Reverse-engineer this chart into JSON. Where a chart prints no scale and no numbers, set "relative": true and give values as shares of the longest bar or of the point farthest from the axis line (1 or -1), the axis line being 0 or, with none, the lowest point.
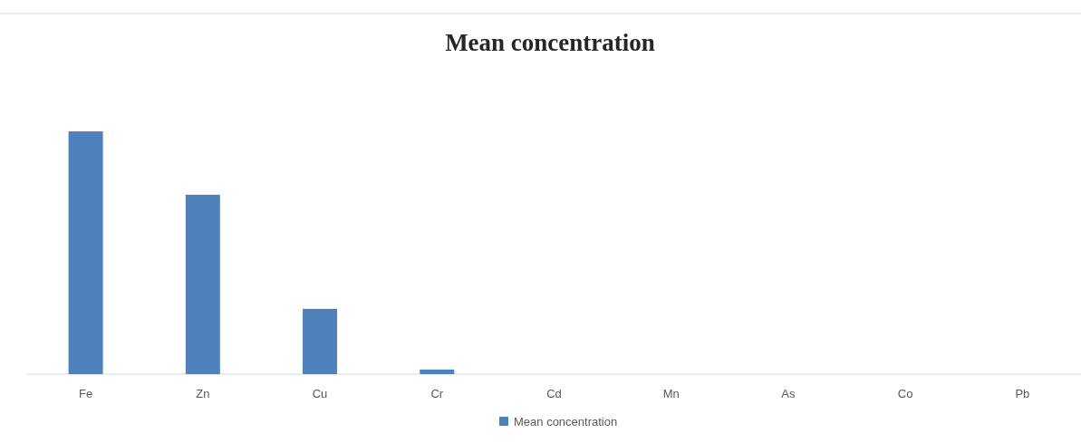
{
  "chart_data": {
    "type": "bar",
    "title": "Mean concentration",
    "categories": [
      "Fe",
      "Zn",
      "Cu",
      "Cr",
      "Cd",
      "Mn",
      "As",
      "Co",
      "Pb"
    ],
    "series": [
      {
        "name": "Mean concentration",
        "color": "#4f81bd",
        "values": [
          1,
          0.739,
          0.269,
          0.019,
          0,
          0,
          0,
          0,
          0
        ]
      }
    ],
    "relative": true,
    "legend": "bottom"
  }
}
